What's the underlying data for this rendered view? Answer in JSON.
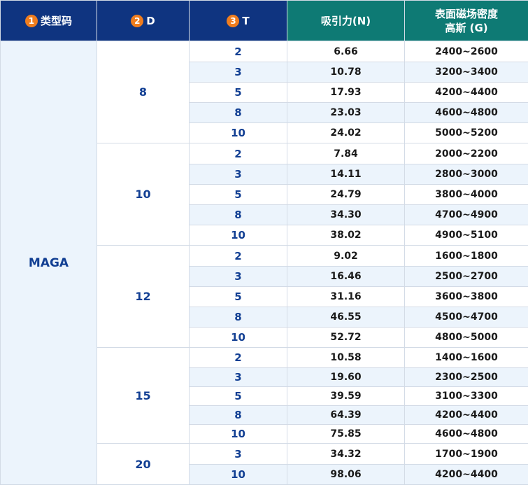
{
  "header": {
    "type_code": {
      "badge": "1",
      "label": "类型码"
    },
    "d": {
      "badge": "2",
      "label": "D"
    },
    "t": {
      "badge": "3",
      "label": "T"
    },
    "force": {
      "label": "吸引力(N)"
    },
    "flux": {
      "label_line1": "表面磁场密度",
      "label_line2": "高斯 (G)"
    }
  },
  "type_code": "MAGA",
  "groups": [
    {
      "d": "8",
      "rows": [
        {
          "t": "2",
          "force": "6.66",
          "flux": "2400~2600"
        },
        {
          "t": "3",
          "force": "10.78",
          "flux": "3200~3400"
        },
        {
          "t": "5",
          "force": "17.93",
          "flux": "4200~4400"
        },
        {
          "t": "8",
          "force": "23.03",
          "flux": "4600~4800"
        },
        {
          "t": "10",
          "force": "24.02",
          "flux": "5000~5200"
        }
      ]
    },
    {
      "d": "10",
      "rows": [
        {
          "t": "2",
          "force": "7.84",
          "flux": "2000~2200"
        },
        {
          "t": "3",
          "force": "14.11",
          "flux": "2800~3000"
        },
        {
          "t": "5",
          "force": "24.79",
          "flux": "3800~4000"
        },
        {
          "t": "8",
          "force": "34.30",
          "flux": "4700~4900"
        },
        {
          "t": "10",
          "force": "38.02",
          "flux": "4900~5100"
        }
      ]
    },
    {
      "d": "12",
      "rows": [
        {
          "t": "2",
          "force": "9.02",
          "flux": "1600~1800"
        },
        {
          "t": "3",
          "force": "16.46",
          "flux": "2500~2700"
        },
        {
          "t": "5",
          "force": "31.16",
          "flux": "3600~3800"
        },
        {
          "t": "8",
          "force": "46.55",
          "flux": "4500~4700"
        },
        {
          "t": "10",
          "force": "52.72",
          "flux": "4800~5000"
        }
      ]
    },
    {
      "d": "15",
      "rows": [
        {
          "t": "2",
          "force": "10.58",
          "flux": "1400~1600"
        },
        {
          "t": "3",
          "force": "19.60",
          "flux": "2300~2500"
        },
        {
          "t": "5",
          "force": "39.59",
          "flux": "3100~3300"
        },
        {
          "t": "8",
          "force": "64.39",
          "flux": "4200~4400"
        },
        {
          "t": "10",
          "force": "75.85",
          "flux": "4600~4800"
        }
      ]
    },
    {
      "d": "20",
      "rows": [
        {
          "t": "3",
          "force": "34.32",
          "flux": "1700~1900"
        },
        {
          "t": "10",
          "force": "98.06",
          "flux": "4200~4400"
        }
      ]
    }
  ]
}
